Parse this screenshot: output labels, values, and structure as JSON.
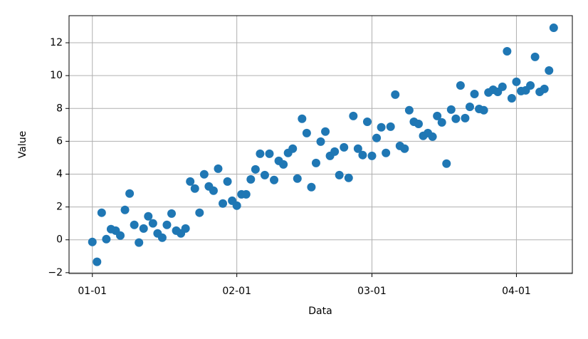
{
  "chart_data": {
    "type": "scatter",
    "xlabel": "Data",
    "ylabel": "Value",
    "color": "#1f77b4",
    "grid": true,
    "x": [
      "01-01",
      "01-02",
      "01-03",
      "01-04",
      "01-05",
      "01-06",
      "01-07",
      "01-08",
      "01-09",
      "01-10",
      "01-11",
      "01-12",
      "01-13",
      "01-14",
      "01-15",
      "01-16",
      "01-17",
      "01-18",
      "01-19",
      "01-20",
      "01-21",
      "01-22",
      "01-23",
      "01-24",
      "01-25",
      "01-26",
      "01-27",
      "01-28",
      "01-29",
      "01-30",
      "01-31",
      "02-01",
      "02-02",
      "02-03",
      "02-04",
      "02-05",
      "02-06",
      "02-07",
      "02-08",
      "02-09",
      "02-10",
      "02-11",
      "02-12",
      "02-13",
      "02-14",
      "02-15",
      "02-16",
      "02-17",
      "02-18",
      "02-19",
      "02-20",
      "02-21",
      "02-22",
      "02-23",
      "02-24",
      "02-25",
      "02-26",
      "02-27",
      "02-28",
      "02-29",
      "03-01",
      "03-02",
      "03-03",
      "03-04",
      "03-05",
      "03-06",
      "03-07",
      "03-08",
      "03-09",
      "03-10",
      "03-11",
      "03-12",
      "03-13",
      "03-14",
      "03-15",
      "03-16",
      "03-17",
      "03-18",
      "03-19",
      "03-20",
      "03-21",
      "03-22",
      "03-23",
      "03-24",
      "03-25",
      "03-26",
      "03-27",
      "03-28",
      "03-29",
      "03-30",
      "03-31",
      "04-01",
      "04-02",
      "04-03",
      "04-04",
      "04-05",
      "04-06",
      "04-07",
      "04-08",
      "04-09"
    ],
    "values": [
      -0.13,
      -1.34,
      1.65,
      0.04,
      0.65,
      0.56,
      0.26,
      1.82,
      2.82,
      0.91,
      -0.17,
      0.69,
      1.43,
      1.0,
      0.39,
      0.13,
      0.91,
      1.6,
      0.56,
      0.39,
      0.69,
      3.55,
      3.12,
      1.65,
      3.99,
      3.25,
      2.99,
      4.33,
      2.21,
      3.55,
      2.38,
      2.08,
      2.77,
      2.77,
      3.68,
      4.29,
      5.24,
      3.94,
      5.24,
      3.64,
      4.81,
      4.59,
      5.29,
      5.55,
      3.73,
      7.37,
      6.5,
      3.21,
      4.68,
      5.98,
      6.59,
      5.11,
      5.37,
      3.94,
      5.63,
      3.77,
      7.54,
      5.55,
      5.16,
      7.19,
      5.11,
      6.2,
      6.85,
      5.29,
      6.89,
      8.84,
      5.72,
      5.55,
      7.89,
      7.19,
      7.06,
      6.33,
      6.5,
      6.28,
      7.54,
      7.15,
      4.64,
      7.93,
      7.37,
      9.4,
      7.41,
      8.1,
      8.88,
      7.97,
      7.89,
      8.97,
      9.14,
      9.01,
      9.32,
      11.48,
      8.62,
      9.62,
      9.06,
      9.1,
      9.4,
      11.14,
      9.01,
      9.19,
      10.31,
      12.91
    ],
    "xlim": [
      "12-27",
      "04-13"
    ],
    "xticks": [
      "01-01",
      "02-01",
      "03-01",
      "04-01"
    ],
    "ylim": [
      -2.05,
      13.65
    ],
    "yticks": [
      {
        "value": -2,
        "label": "−2"
      },
      0,
      2,
      4,
      6,
      8,
      10,
      12
    ]
  }
}
